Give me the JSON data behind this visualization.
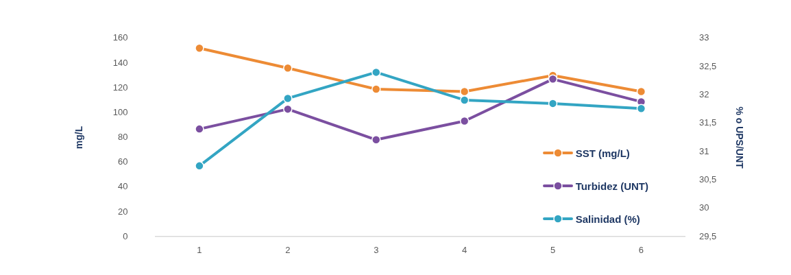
{
  "chart_data": {
    "type": "line",
    "ylabel": "mg/L",
    "y2label": "% o UPS/UNT",
    "categories": [
      "1",
      "2",
      "3",
      "4",
      "5",
      "6"
    ],
    "series": [
      {
        "name": "SST (mg/L)",
        "color": "#ed8b35",
        "values": [
          152,
          136,
          119,
          117,
          130,
          117
        ]
      },
      {
        "name": "Turbidez (UNT)",
        "color": "#7b4fa0",
        "axis": "y2",
        "values": [
          31.4,
          31.75,
          31.21,
          31.54,
          32.28,
          31.88
        ]
      },
      {
        "name": "Salinidad (%)",
        "color": "#33a5c3",
        "axis": "y2",
        "values": [
          30.75,
          31.94,
          32.4,
          31.91,
          31.85,
          31.76
        ]
      }
    ],
    "ylim": [
      0,
      160
    ],
    "yticks": [
      0,
      20,
      40,
      60,
      80,
      100,
      120,
      140,
      160
    ],
    "y2lim": [
      29.5,
      33
    ],
    "y2ticks": [
      {
        "value": 29.5,
        "label": "29,5"
      },
      30,
      {
        "value": 30.5,
        "label": "30,5"
      },
      31,
      {
        "value": 31.5,
        "label": "31,5"
      },
      32,
      {
        "value": 32.5,
        "label": "32,5"
      },
      33
    ],
    "grid": false,
    "legend": "bottom right",
    "marker": "circle",
    "line_style": "solid"
  }
}
